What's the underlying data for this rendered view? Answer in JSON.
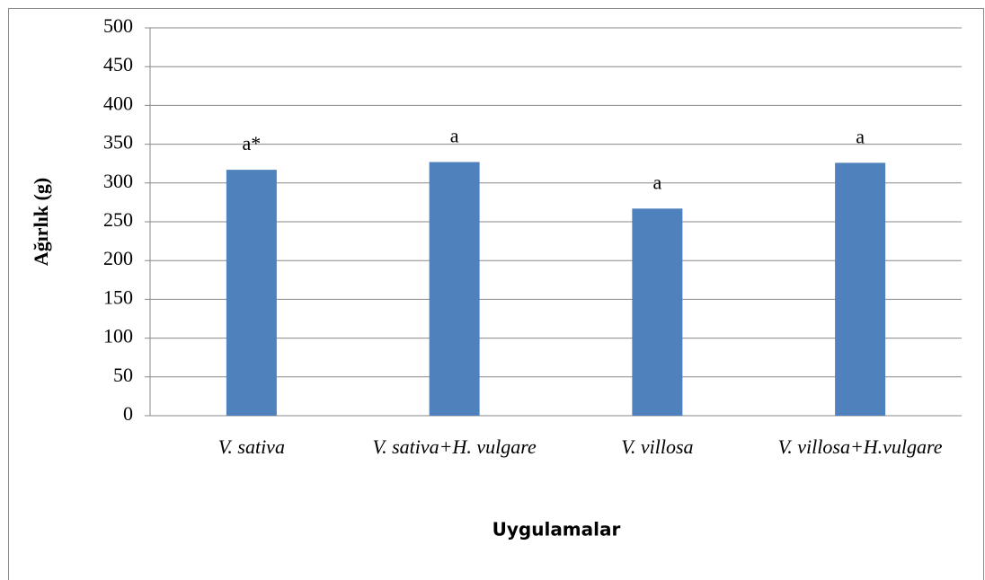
{
  "chart_data": {
    "type": "bar",
    "x_label": "Uygulamalar",
    "y_label": "Ağırlık (g)",
    "categories": [
      "V. sativa",
      "V. sativa+H. vulgare",
      "V. villosa",
      "V. villosa+H.vulgare"
    ],
    "values": [
      317,
      327,
      267,
      326
    ],
    "annotations": [
      "a*",
      "a",
      "a",
      "a"
    ],
    "color": "#4f81bd",
    "ylim": [
      0,
      500
    ],
    "yticks": [
      0,
      50,
      100,
      150,
      200,
      250,
      300,
      350,
      400,
      450,
      500
    ],
    "grid": true
  }
}
